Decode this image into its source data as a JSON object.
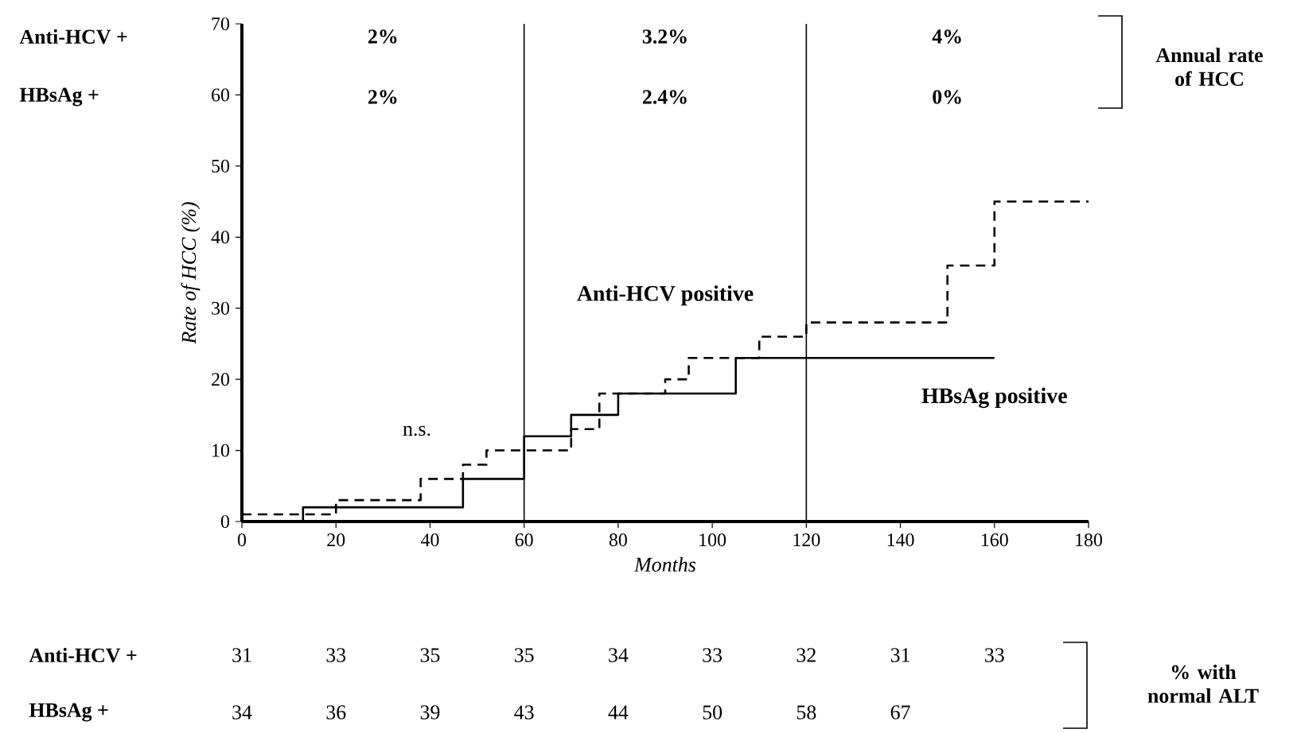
{
  "chart_data": {
    "type": "step",
    "xlabel": "Months",
    "ylabel": "Rate of HCC  (%)",
    "xlim": [
      0,
      180
    ],
    "xticks": [
      0,
      20,
      40,
      60,
      80,
      100,
      120,
      140,
      160,
      180
    ],
    "ylim": [
      0,
      70
    ],
    "yticks": [
      0,
      10,
      20,
      30,
      40,
      50,
      60,
      70
    ],
    "grid": false,
    "marker": "none",
    "series": [
      {
        "name": "Anti-HCV positive",
        "color": "#000000",
        "line_style": "dashed",
        "x": [
          0,
          20,
          38,
          47,
          52,
          70,
          76,
          90,
          95,
          110,
          120,
          150,
          160,
          180
        ],
        "values": [
          1,
          3,
          6,
          8,
          10,
          13,
          18,
          20,
          23,
          26,
          28,
          36,
          45,
          45
        ]
      },
      {
        "name": "HBsAg positive",
        "color": "#000000",
        "line_style": "solid",
        "x": [
          0,
          13,
          47,
          60,
          70,
          80,
          105,
          160
        ],
        "values": [
          0,
          2,
          6,
          12,
          15,
          18,
          23,
          23
        ]
      }
    ],
    "ref_lines": [
      {
        "axis": "x",
        "value": 60,
        "color": "#000000"
      },
      {
        "axis": "x",
        "value": 120,
        "color": "#000000"
      }
    ],
    "annotations": [
      "Anti-HCV +",
      "HBsAg +",
      "2%",
      "3.2%",
      "4%",
      "2%",
      "2.4%",
      "0%",
      "Annual rate of HCC",
      "Anti-HCV +",
      "HBsAg +",
      "31",
      "33",
      "35",
      "35",
      "34",
      "33",
      "32",
      "31",
      "33",
      "34",
      "36",
      "39",
      "43",
      "44",
      "50",
      "58",
      "67",
      "% with normal ALT",
      "n.s."
    ]
  }
}
